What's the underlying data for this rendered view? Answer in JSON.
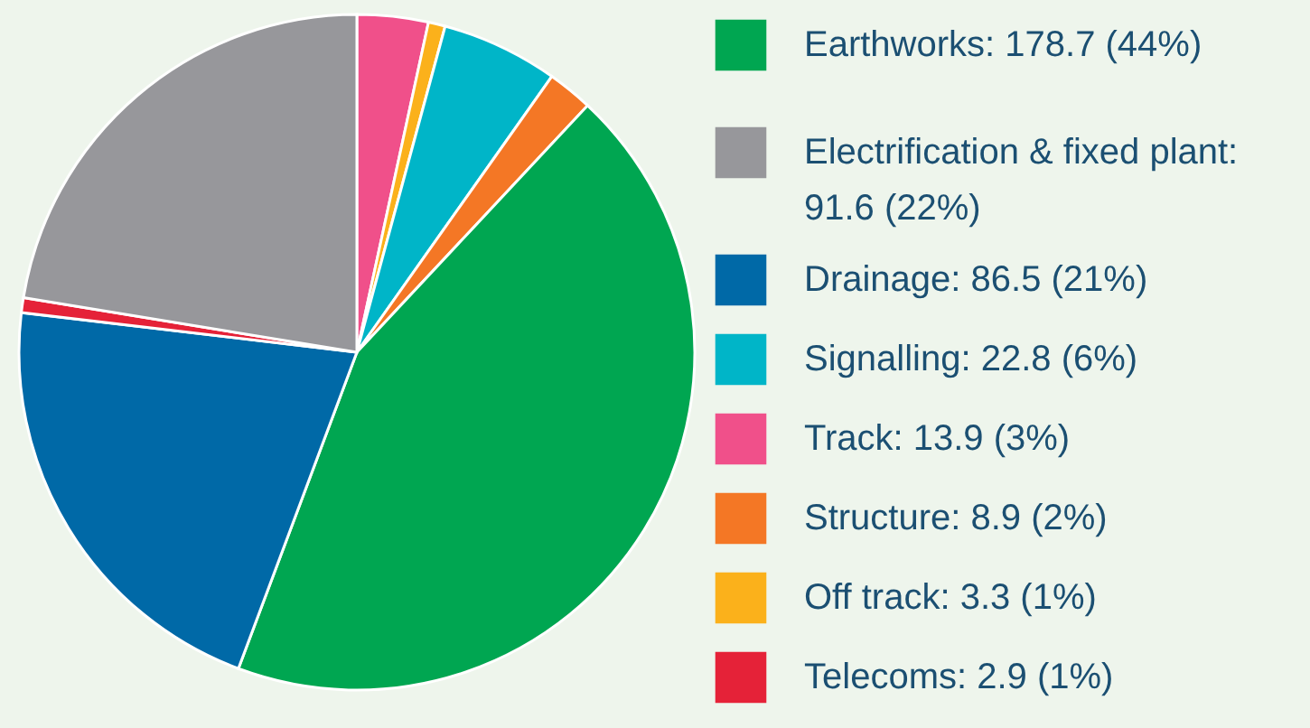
{
  "chart_data": {
    "type": "pie",
    "categories": [
      "Track: 13.9 (3%)",
      "Off track: 3.3 (1%)",
      "Signalling: 22.8 (6%)",
      "Structure: 8.9 (2%)",
      "Earthworks: 178.7 (44%)",
      "Drainage: 86.5 (21%)",
      "Telecoms: 2.9 (1%)",
      "Electrification & fixed plant: 91.6 (22%)"
    ],
    "values": [
      13.9,
      3.3,
      22.8,
      8.9,
      178.7,
      86.5,
      2.9,
      91.6
    ],
    "colors": [
      "#f0508a",
      "#fbb11b",
      "#00b5c8",
      "#f47725",
      "#00a651",
      "#0069a7",
      "#e52238",
      "#97979b"
    ],
    "legend": "right"
  }
}
